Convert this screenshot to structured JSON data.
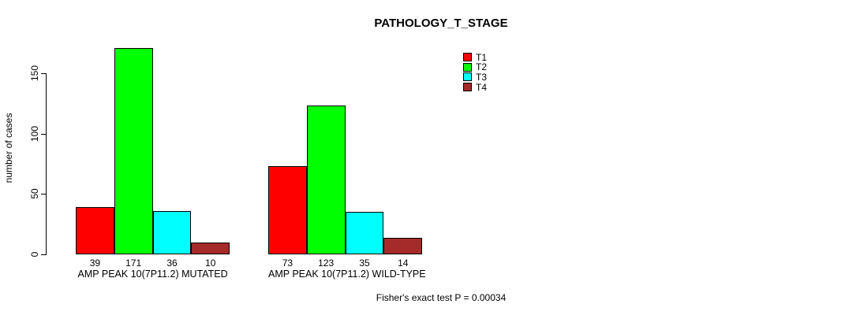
{
  "chart": {
    "title": "PATHOLOGY_T_STAGE",
    "ylabel": "number of cases",
    "footnote": "Fisher's exact test P = 0.00034"
  },
  "chart_data": {
    "type": "bar",
    "title": "PATHOLOGY_T_STAGE",
    "xlabel": "",
    "ylabel": "number of cases",
    "categories": [
      "AMP PEAK 10(7P11.2) MUTATED",
      "AMP PEAK 10(7P11.2) WILD-TYPE"
    ],
    "series": [
      {
        "name": "T1",
        "color": "#ff0000",
        "values": [
          39,
          73
        ]
      },
      {
        "name": "T2",
        "color": "#00ff00",
        "values": [
          171,
          123
        ]
      },
      {
        "name": "T3",
        "color": "#00ffff",
        "values": [
          36,
          35
        ]
      },
      {
        "name": "T4",
        "color": "#a52a2a",
        "values": [
          10,
          14
        ]
      }
    ],
    "bar_value_labels": [
      [
        39,
        171,
        36,
        10
      ],
      [
        73,
        123,
        35,
        14
      ]
    ],
    "yticks": [
      0,
      50,
      100,
      150
    ],
    "ylim": [
      0,
      171
    ],
    "grid": false,
    "legend_position": "top-right",
    "annotation": "Fisher's exact test P = 0.00034"
  }
}
